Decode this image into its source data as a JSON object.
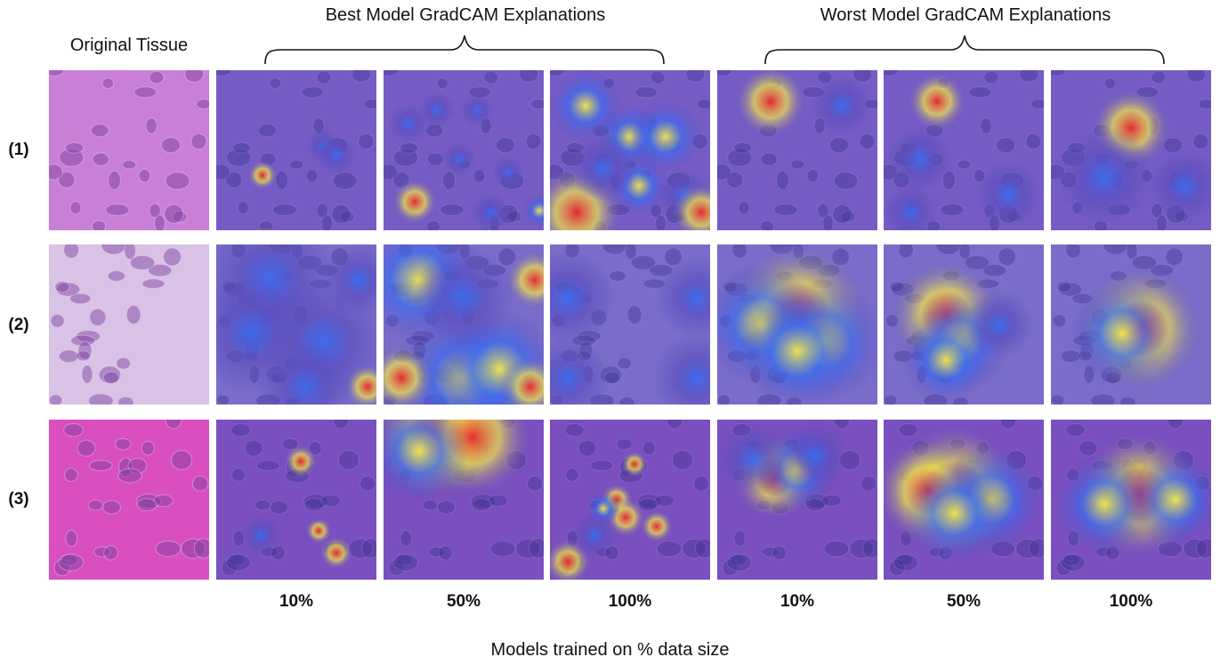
{
  "header": {
    "original_title": "Original Tissue",
    "best_group_title": "Best Model GradCAM Explanations",
    "worst_group_title": "Worst Model GradCAM Explanations"
  },
  "rows": [
    {
      "label": "(1)",
      "tissue_color": "#c97fd6"
    },
    {
      "label": "(2)",
      "tissue_color": "#d8c2e6"
    },
    {
      "label": "(3)",
      "tissue_color": "#d94fc0"
    }
  ],
  "columns": [
    {
      "label": "10%"
    },
    {
      "label": "50%"
    },
    {
      "label": "100%"
    },
    {
      "label": "10%"
    },
    {
      "label": "50%"
    },
    {
      "label": "100%"
    }
  ],
  "footer": {
    "x_axis_title": "Models trained on % data size"
  },
  "colors": {
    "heat_base": "#5b4fbf",
    "heat_cold": "#3b6cf0",
    "heat_warm": "#f3e84a",
    "heat_hot": "#e8262a"
  }
}
